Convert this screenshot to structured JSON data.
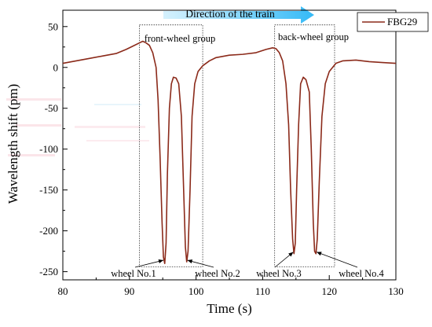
{
  "chart_data": {
    "type": "line",
    "title": "",
    "xlabel": "Time (s)",
    "ylabel": "Wavelength shift (pm)",
    "xlim": [
      80,
      130
    ],
    "ylim": [
      -260,
      70
    ],
    "x_ticks": [
      80,
      90,
      100,
      110,
      120,
      130
    ],
    "y_ticks": [
      50,
      0,
      -50,
      -100,
      -150,
      -200,
      -250
    ],
    "grid": false,
    "legend": {
      "position": "top-right",
      "entries": [
        "FBG29"
      ]
    },
    "series": [
      {
        "name": "FBG29",
        "color": "#8b2a1a",
        "x": [
          80,
          82,
          84,
          86,
          88,
          89.5,
          90.5,
          91.5,
          92,
          92.5,
          93,
          93.5,
          94,
          94.3,
          94.6,
          94.9,
          95.1,
          95.3,
          95.5,
          95.7,
          96,
          96.3,
          96.6,
          97,
          97.4,
          97.8,
          98.1,
          98.4,
          98.6,
          98.8,
          99.1,
          99.4,
          99.8,
          100.3,
          101,
          102,
          103,
          105,
          107,
          109,
          110.5,
          111.5,
          112,
          112.5,
          113,
          113.5,
          113.9,
          114.2,
          114.5,
          114.7,
          114.9,
          115.1,
          115.4,
          115.7,
          116.1,
          116.5,
          117,
          117.3,
          117.6,
          117.8,
          118,
          118.2,
          118.5,
          118.9,
          119.4,
          120,
          121,
          122,
          124,
          126,
          128,
          130
        ],
        "values": [
          5,
          8,
          11,
          14,
          17,
          22,
          26,
          30,
          32,
          30,
          27,
          18,
          0,
          -40,
          -110,
          -190,
          -232,
          -240,
          -215,
          -130,
          -50,
          -20,
          -12,
          -13,
          -20,
          -60,
          -140,
          -220,
          -238,
          -225,
          -150,
          -60,
          -20,
          -5,
          2,
          8,
          12,
          15,
          16,
          18,
          22,
          24,
          23,
          18,
          8,
          -20,
          -70,
          -150,
          -210,
          -228,
          -215,
          -150,
          -70,
          -20,
          -12,
          -15,
          -30,
          -100,
          -190,
          -225,
          -228,
          -210,
          -140,
          -60,
          -20,
          -5,
          5,
          8,
          9,
          7,
          6,
          5
        ]
      }
    ],
    "top_label": "Direction of the train",
    "annotations": {
      "front_group": "front-wheel group",
      "back_group": "back-wheel group",
      "wheel1": "wheel No.1",
      "wheel2": "wheel No.2",
      "wheel3": "wheel No.3",
      "wheel4": "wheel No.4"
    },
    "arrow_color": "#4fc3f7"
  }
}
